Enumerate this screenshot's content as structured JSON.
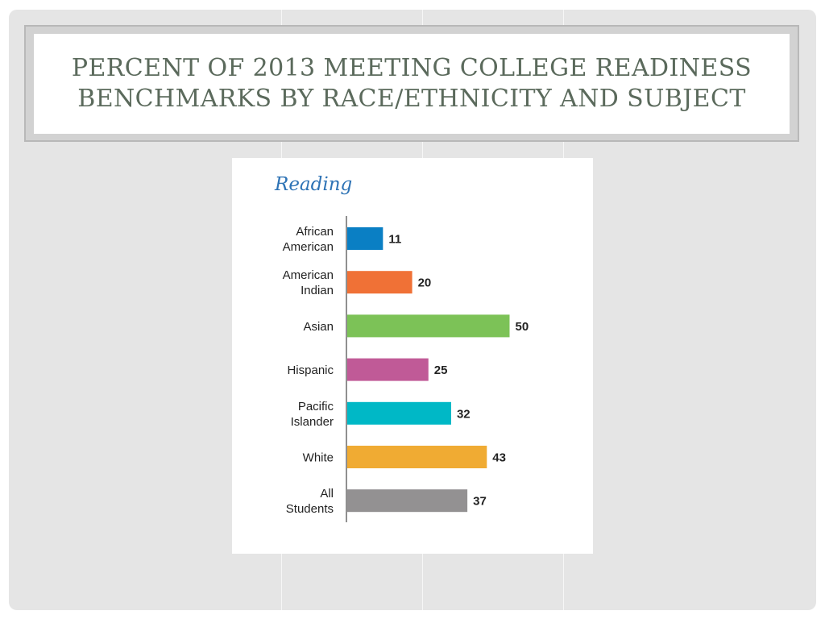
{
  "slide": {
    "title": "PERCENT OF 2013 MEETING COLLEGE READINESS BENCHMARKS BY RACE/ETHNICITY AND SUBJECT"
  },
  "chart_data": {
    "type": "bar",
    "orientation": "horizontal",
    "title": "Reading",
    "categories": [
      [
        "African",
        "American"
      ],
      [
        "American",
        "Indian"
      ],
      [
        "Asian"
      ],
      [
        "Hispanic"
      ],
      [
        "Pacific",
        "Islander"
      ],
      [
        "White"
      ],
      [
        "All",
        "Students"
      ]
    ],
    "values": [
      11,
      20,
      50,
      25,
      32,
      43,
      37
    ],
    "value_labels": [
      "11",
      "20",
      "50",
      "25",
      "32",
      "43",
      "37"
    ],
    "colors": [
      "#0a7fc4",
      "#f07136",
      "#7cc257",
      "#c05a97",
      "#00b8c6",
      "#f0ab33",
      "#939192"
    ],
    "title_color": "#2e73b5",
    "xlim": [
      0,
      100
    ],
    "grid": false,
    "legend": "none"
  }
}
